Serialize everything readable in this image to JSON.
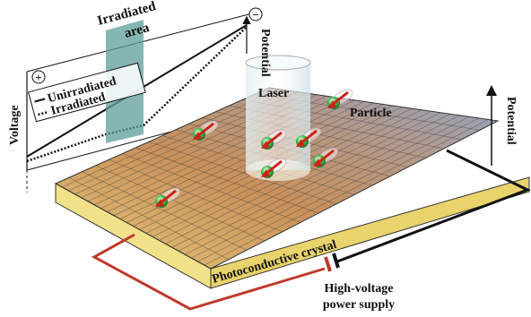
{
  "labels": {
    "irradiated_area": [
      "Irradiated",
      "area"
    ],
    "plus": "+",
    "minus": "−",
    "potential_left": "Potential",
    "voltage": "Voltage",
    "legend": [
      "Unirradiated",
      "Irradiated"
    ],
    "laser": "Laser",
    "particle": "Particle",
    "potential_right": "Potential",
    "crystal": "Photoconductive crystal",
    "power_supply": [
      "High-voltage",
      "power supply"
    ]
  }
}
